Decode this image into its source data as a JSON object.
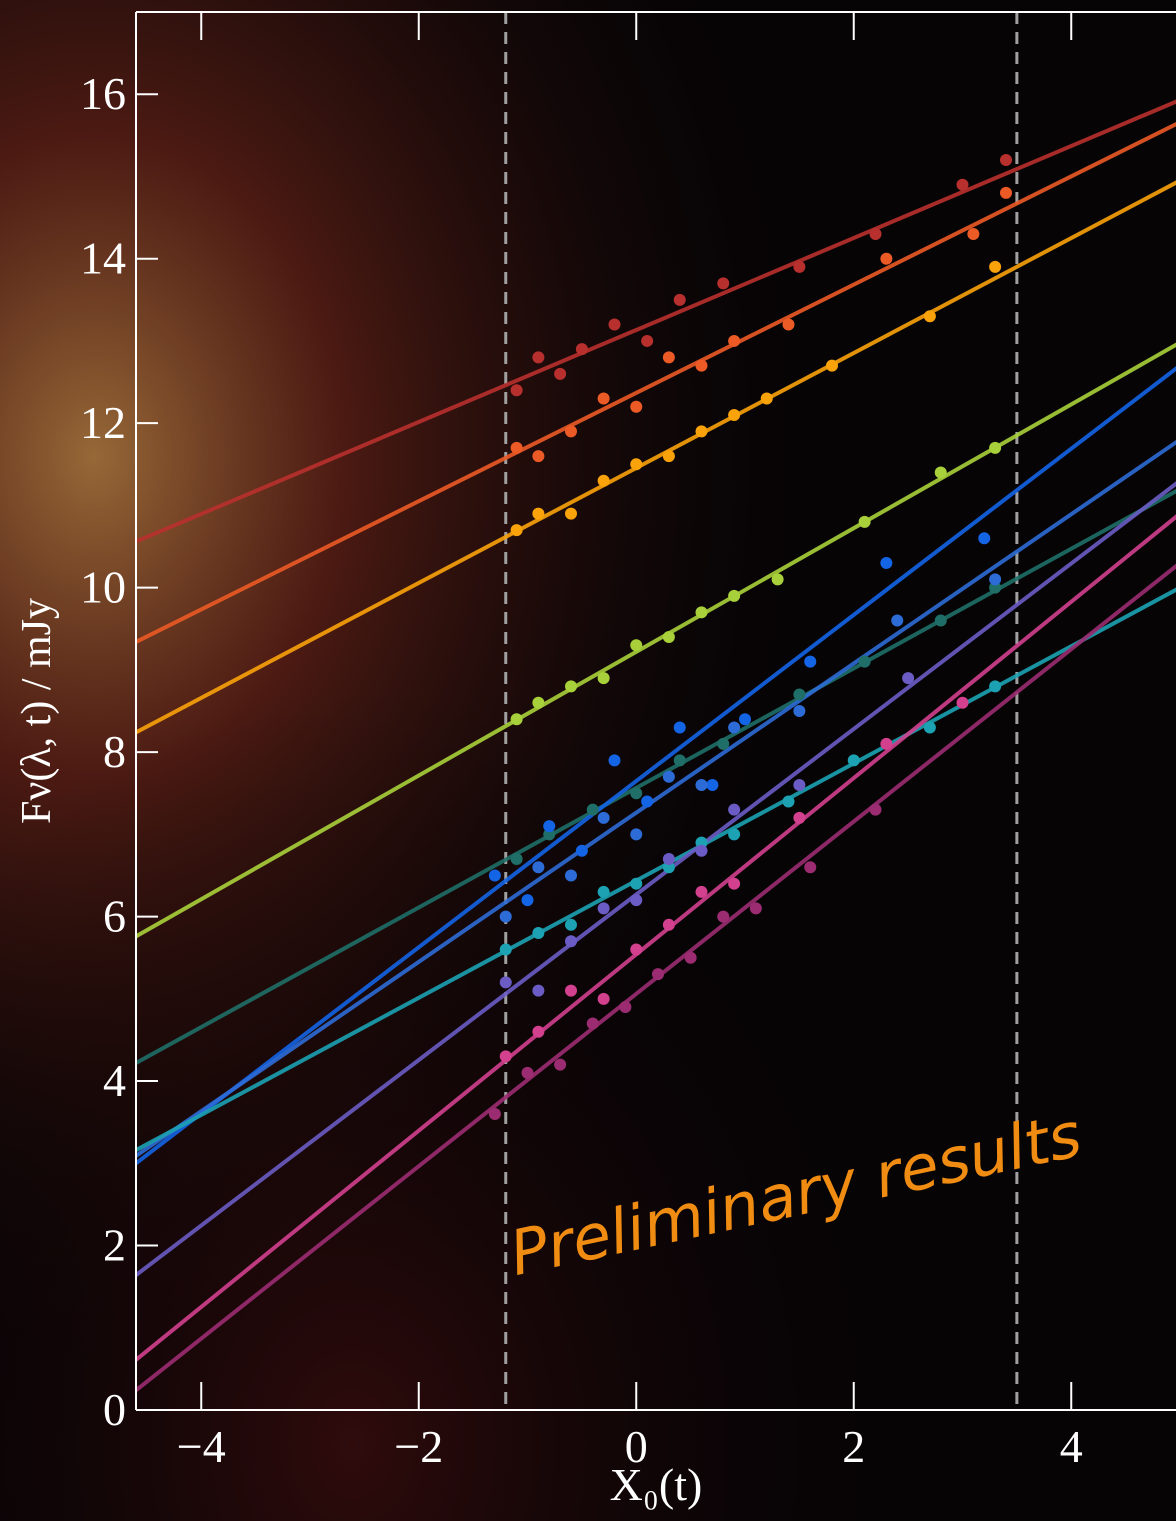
{
  "chart_data": {
    "type": "scatter",
    "xlabel": "X₀(t)",
    "ylabel": "Fν(λ, t) / mJy",
    "annotation": "Preliminary results",
    "xlim": [
      -4.6,
      5.0
    ],
    "ylim": [
      0,
      17
    ],
    "xticks": [
      {
        "value": -4,
        "label": "−4"
      },
      {
        "value": -2,
        "label": "−2"
      },
      0,
      2,
      4
    ],
    "yticks": [
      0,
      2,
      4,
      6,
      8,
      10,
      12,
      14,
      16
    ],
    "vlines": [
      -1.2,
      3.5
    ],
    "fit_x": [
      -4.6,
      5.0
    ],
    "series": [
      {
        "color": "#b8302e",
        "fit": [
          10.56,
          15.93
        ],
        "x": [
          -1.1,
          -0.9,
          -0.7,
          -0.5,
          -0.2,
          0.1,
          0.4,
          0.8,
          1.5,
          2.2,
          3.0,
          3.4
        ],
        "values": [
          12.4,
          12.8,
          12.6,
          12.9,
          13.2,
          13.0,
          13.5,
          13.7,
          13.9,
          14.3,
          14.9,
          15.2
        ]
      },
      {
        "color": "#ec5a26",
        "fit": [
          9.34,
          15.66
        ],
        "x": [
          -1.1,
          -0.9,
          -0.6,
          -0.3,
          0,
          0.3,
          0.6,
          0.9,
          1.4,
          2.3,
          3.1,
          3.4
        ],
        "values": [
          11.7,
          11.6,
          11.9,
          12.3,
          12.2,
          12.8,
          12.7,
          13.0,
          13.2,
          14.0,
          14.3,
          14.8
        ]
      },
      {
        "color": "#f9a20a",
        "fit": [
          8.24,
          14.95
        ],
        "x": [
          -1.1,
          -0.9,
          -0.6,
          -0.3,
          0,
          0.3,
          0.6,
          0.9,
          1.2,
          1.8,
          2.7,
          3.3
        ],
        "values": [
          10.7,
          10.9,
          10.9,
          11.3,
          11.5,
          11.6,
          11.9,
          12.1,
          12.3,
          12.7,
          13.3,
          13.9
        ]
      },
      {
        "color": "#a8d03a",
        "fit": [
          5.76,
          12.98
        ],
        "x": [
          -1.1,
          -0.9,
          -0.6,
          -0.3,
          0,
          0.3,
          0.6,
          0.9,
          1.3,
          2.1,
          2.8,
          3.3
        ],
        "values": [
          8.4,
          8.6,
          8.8,
          8.9,
          9.3,
          9.4,
          9.7,
          9.9,
          10.1,
          10.8,
          11.4,
          11.7
        ]
      },
      {
        "color": "#1f6f68",
        "fit": [
          4.22,
          11.2
        ],
        "x": [
          -1.1,
          -0.8,
          -0.4,
          0,
          0.4,
          0.8,
          1.5,
          2.1,
          2.8,
          3.3
        ],
        "values": [
          6.7,
          7.0,
          7.3,
          7.5,
          7.9,
          8.1,
          8.7,
          9.1,
          9.6,
          10.0
        ]
      },
      {
        "color": "#1464e6",
        "fit": [
          3.0,
          12.7
        ],
        "x": [
          -1.3,
          -1.0,
          -0.8,
          -0.5,
          -0.2,
          0.1,
          0.4,
          0.7,
          1.0,
          1.6,
          2.3,
          3.2
        ],
        "values": [
          6.5,
          6.2,
          7.1,
          6.8,
          7.9,
          7.4,
          8.3,
          7.6,
          8.4,
          9.1,
          10.3,
          10.6
        ]
      },
      {
        "color": "#2d6cd6",
        "fit": [
          3.09,
          11.8
        ],
        "x": [
          -1.2,
          -0.9,
          -0.6,
          -0.3,
          0,
          0.3,
          0.6,
          0.9,
          1.5,
          2.4,
          3.3
        ],
        "values": [
          6.0,
          6.6,
          6.5,
          7.2,
          7.0,
          7.7,
          7.6,
          8.3,
          8.5,
          9.6,
          10.1
        ]
      },
      {
        "color": "#1ca2b2",
        "fit": [
          3.16,
          10.0
        ],
        "x": [
          -1.2,
          -0.9,
          -0.6,
          -0.3,
          0,
          0.3,
          0.6,
          0.9,
          1.4,
          2.0,
          2.7,
          3.3
        ],
        "values": [
          5.6,
          5.8,
          5.9,
          6.3,
          6.4,
          6.6,
          6.9,
          7.0,
          7.4,
          7.9,
          8.3,
          8.8
        ]
      },
      {
        "color": "#6a5cc4",
        "fit": [
          1.64,
          11.3
        ],
        "x": [
          -1.2,
          -0.9,
          -0.6,
          -0.3,
          0,
          0.3,
          0.6,
          0.9,
          1.5,
          2.5
        ],
        "values": [
          5.2,
          5.1,
          5.7,
          6.1,
          6.2,
          6.7,
          6.8,
          7.3,
          7.6,
          8.9
        ]
      },
      {
        "color": "#d2408e",
        "fit": [
          0.61,
          10.9
        ],
        "x": [
          -1.2,
          -0.9,
          -0.6,
          -0.3,
          0,
          0.3,
          0.6,
          0.9,
          1.5,
          2.3,
          3.0
        ],
        "values": [
          4.3,
          4.6,
          5.1,
          5.0,
          5.6,
          5.9,
          6.3,
          6.4,
          7.2,
          8.1,
          8.6
        ]
      },
      {
        "color": "#9c2c72",
        "fit": [
          0.24,
          10.3
        ],
        "x": [
          -1.3,
          -1.0,
          -0.7,
          -0.4,
          -0.1,
          0.2,
          0.5,
          0.8,
          1.1,
          1.6,
          2.2
        ],
        "values": [
          3.6,
          4.1,
          4.2,
          4.7,
          4.9,
          5.3,
          5.5,
          6.0,
          6.1,
          6.6,
          7.3
        ]
      }
    ]
  }
}
